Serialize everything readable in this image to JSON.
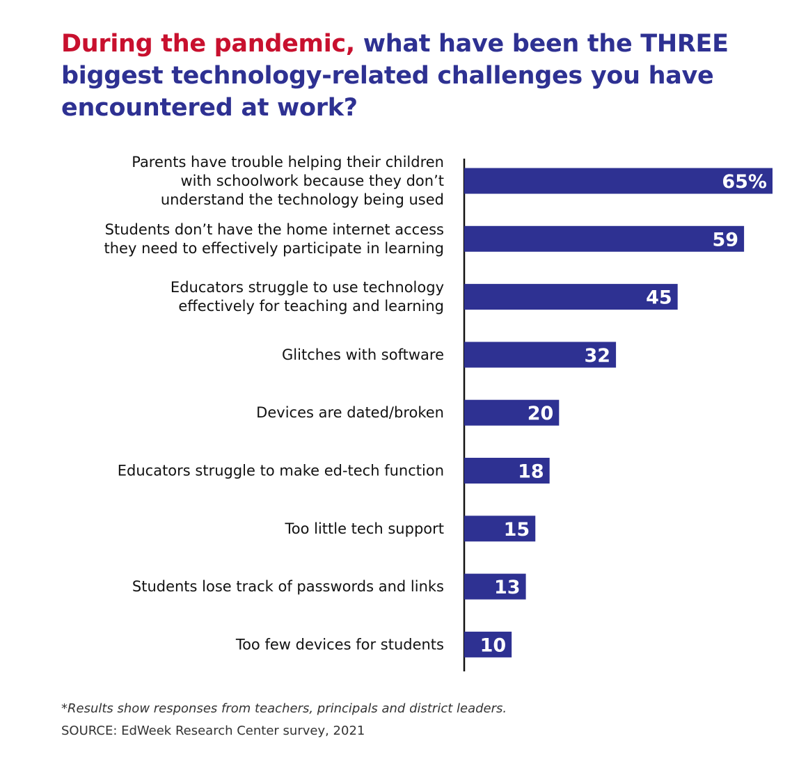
{
  "title": {
    "highlight": "During the pandemic,",
    "rest": " what have been the THREE biggest technology-related challenges you have encountered at work?"
  },
  "colors": {
    "bar": "#2e3192",
    "title_main": "#2e3192",
    "title_highlight": "#c8102e",
    "value_text": "#ffffff"
  },
  "chart_data": {
    "type": "bar",
    "orientation": "horizontal",
    "categories": [
      [
        "Parents have trouble helping their children",
        "with schoolwork because they don’t",
        "understand the technology being used"
      ],
      [
        "Students don’t have the home internet access",
        "they need to effectively participate in learning"
      ],
      [
        "Educators struggle to use technology",
        "effectively for teaching and learning"
      ],
      [
        "Glitches with software"
      ],
      [
        "Devices are dated/broken"
      ],
      [
        "Educators struggle to make ed-tech function"
      ],
      [
        "Too little tech support"
      ],
      [
        "Students lose track of passwords and links"
      ],
      [
        "Too few devices for students"
      ]
    ],
    "values": [
      65,
      59,
      45,
      32,
      20,
      18,
      15,
      13,
      10
    ],
    "value_labels": [
      "65%",
      "59",
      "45",
      "32",
      "20",
      "18",
      "15",
      "13",
      "10"
    ],
    "xlim": [
      0,
      65
    ],
    "grid": false,
    "legend": "none"
  },
  "footer": {
    "note": "*Results show responses from teachers, principals and district leaders.",
    "source": "SOURCE: EdWeek Research Center survey, 2021"
  }
}
